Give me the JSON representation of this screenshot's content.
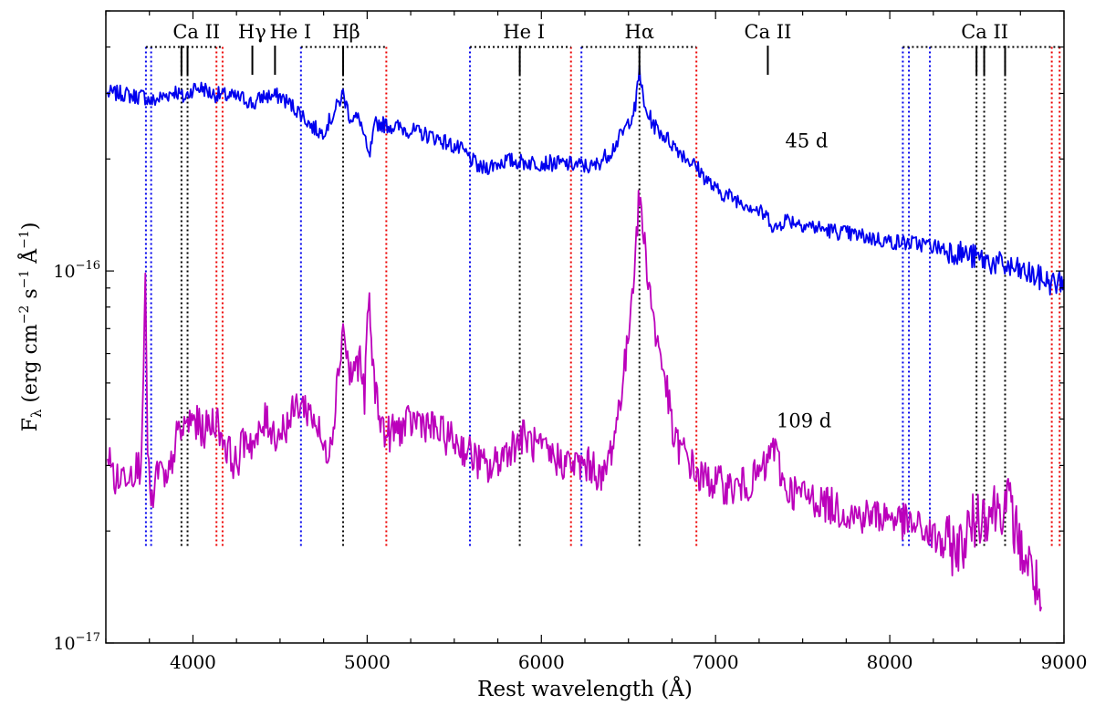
{
  "chart_data": {
    "type": "line",
    "xlabel": "Rest wavelength (Å)",
    "ylabel": "Fλ (erg cm⁻² s⁻¹ Å⁻¹)",
    "ylabel_parts": {
      "base": "F",
      "sub": "λ",
      "rest1": " (erg cm",
      "e1": "−2",
      "rest2": " s",
      "e2": "−1",
      "rest3": " Å",
      "e3": "−1",
      "rest4": ")"
    },
    "xlim": [
      3500,
      9000
    ],
    "ylim": [
      1e-17,
      5e-16
    ],
    "yscale": "log",
    "xticks": [
      4000,
      5000,
      6000,
      7000,
      8000,
      9000
    ],
    "yticks": [
      {
        "value": 1e-17,
        "base": "10",
        "exp": "−17"
      },
      {
        "value": 1e-16,
        "base": "10",
        "exp": "−16"
      }
    ],
    "series": [
      {
        "name": "45 d",
        "color": "#0000ee",
        "points": [
          [
            3510,
            3e-16
          ],
          [
            3600,
            3e-16
          ],
          [
            3650,
            2.95e-16
          ],
          [
            3720,
            2.95e-16
          ],
          [
            3760,
            2.85e-16
          ],
          [
            3800,
            2.9e-16
          ],
          [
            3900,
            3.05e-16
          ],
          [
            3950,
            2.9e-16
          ],
          [
            4000,
            3.1e-16
          ],
          [
            4060,
            3.1e-16
          ],
          [
            4100,
            3e-16
          ],
          [
            4200,
            2.95e-16
          ],
          [
            4300,
            2.9e-16
          ],
          [
            4350,
            2.8e-16
          ],
          [
            4400,
            2.95e-16
          ],
          [
            4500,
            2.95e-16
          ],
          [
            4560,
            2.8e-16
          ],
          [
            4620,
            2.65e-16
          ],
          [
            4680,
            2.45e-16
          ],
          [
            4740,
            2.35e-16
          ],
          [
            4800,
            2.6e-16
          ],
          [
            4862,
            3e-16
          ],
          [
            4900,
            2.6e-16
          ],
          [
            4960,
            2.55e-16
          ],
          [
            5010,
            2e-16
          ],
          [
            5050,
            2.5e-16
          ],
          [
            5200,
            2.42e-16
          ],
          [
            5400,
            2.28e-16
          ],
          [
            5550,
            2.1e-16
          ],
          [
            5650,
            1.88e-16
          ],
          [
            5800,
            1.98e-16
          ],
          [
            5900,
            1.96e-16
          ],
          [
            6050,
            1.95e-16
          ],
          [
            6200,
            1.93e-16
          ],
          [
            6300,
            1.9e-16
          ],
          [
            6400,
            2.1e-16
          ],
          [
            6480,
            2.4e-16
          ],
          [
            6540,
            2.75e-16
          ],
          [
            6563,
            3.5e-16
          ],
          [
            6590,
            2.75e-16
          ],
          [
            6650,
            2.45e-16
          ],
          [
            6750,
            2.2e-16
          ],
          [
            6900,
            1.88e-16
          ],
          [
            7000,
            1.65e-16
          ],
          [
            7200,
            1.5e-16
          ],
          [
            7320,
            1.37e-16
          ],
          [
            7330,
            1.28e-16
          ],
          [
            7400,
            1.38e-16
          ],
          [
            7600,
            1.3e-16
          ],
          [
            7800,
            1.25e-16
          ],
          [
            8000,
            1.2e-16
          ],
          [
            8200,
            1.18e-16
          ],
          [
            8400,
            1.12e-16
          ],
          [
            8600,
            1.05e-16
          ],
          [
            8800,
            9.8e-17
          ],
          [
            8950,
            9.2e-17
          ],
          [
            8999,
            9.5e-17
          ]
        ]
      },
      {
        "name": "109 d",
        "color": "#bb00bb",
        "points": [
          [
            3510,
            3.2e-17
          ],
          [
            3560,
            2.7e-17
          ],
          [
            3620,
            2.9e-17
          ],
          [
            3700,
            3e-17
          ],
          [
            3727,
            8.8e-17
          ],
          [
            3740,
            3.5e-17
          ],
          [
            3760,
            2.2e-17
          ],
          [
            3800,
            3e-17
          ],
          [
            3850,
            2.6e-17
          ],
          [
            3900,
            3.5e-17
          ],
          [
            3950,
            3.8e-17
          ],
          [
            4000,
            4e-17
          ],
          [
            4060,
            3.7e-17
          ],
          [
            4130,
            4e-17
          ],
          [
            4200,
            3.3e-17
          ],
          [
            4250,
            3e-17
          ],
          [
            4300,
            3.6e-17
          ],
          [
            4360,
            3.4e-17
          ],
          [
            4420,
            4e-17
          ],
          [
            4480,
            3.6e-17
          ],
          [
            4560,
            4e-17
          ],
          [
            4600,
            4.4e-17
          ],
          [
            4650,
            4.3e-17
          ],
          [
            4700,
            4e-17
          ],
          [
            4760,
            3.2e-17
          ],
          [
            4800,
            3.7e-17
          ],
          [
            4862,
            7.2e-17
          ],
          [
            4900,
            5.2e-17
          ],
          [
            4959,
            5.8e-17
          ],
          [
            4985,
            4.5e-17
          ],
          [
            5007,
            8.5e-17
          ],
          [
            5040,
            5e-17
          ],
          [
            5100,
            3.6e-17
          ],
          [
            5200,
            3.8e-17
          ],
          [
            5300,
            4e-17
          ],
          [
            5400,
            3.7e-17
          ],
          [
            5500,
            3.5e-17
          ],
          [
            5600,
            3.2e-17
          ],
          [
            5700,
            2.9e-17
          ],
          [
            5800,
            3.3e-17
          ],
          [
            5900,
            3.6e-17
          ],
          [
            5990,
            3.3e-17
          ],
          [
            6100,
            3.1e-17
          ],
          [
            6200,
            3e-17
          ],
          [
            6300,
            3e-17
          ],
          [
            6350,
            2.7e-17
          ],
          [
            6420,
            3.6e-17
          ],
          [
            6490,
            6e-17
          ],
          [
            6540,
            1.15e-16
          ],
          [
            6563,
            1.6e-16
          ],
          [
            6600,
            1.1e-16
          ],
          [
            6650,
            7e-17
          ],
          [
            6710,
            5.2e-17
          ],
          [
            6760,
            3.5e-17
          ],
          [
            6830,
            3.2e-17
          ],
          [
            6900,
            2.8e-17
          ],
          [
            7000,
            2.7e-17
          ],
          [
            7100,
            2.6e-17
          ],
          [
            7200,
            2.7e-17
          ],
          [
            7300,
            3e-17
          ],
          [
            7325,
            3.5e-17
          ],
          [
            7400,
            2.6e-17
          ],
          [
            7600,
            2.4e-17
          ],
          [
            7800,
            2.2e-17
          ],
          [
            8000,
            2.2e-17
          ],
          [
            8200,
            2e-17
          ],
          [
            8300,
            1.85e-17
          ],
          [
            8400,
            1.8e-17
          ],
          [
            8500,
            2.2e-17
          ],
          [
            8600,
            2.3e-17
          ],
          [
            8680,
            2.4e-17
          ],
          [
            8750,
            1.8e-17
          ],
          [
            8830,
            1.5e-17
          ],
          [
            8870,
            1.25e-17
          ]
        ]
      }
    ],
    "annotations": [
      {
        "text": "45 d",
        "x": 7400,
        "y": 2.15e-16
      },
      {
        "text": "109 d",
        "x": 7350,
        "y": 3.8e-17
      }
    ],
    "line_labels": [
      {
        "text": "Ca II",
        "x": 4020
      },
      {
        "text": "Hγ",
        "x": 4340
      },
      {
        "text": "He I",
        "x": 4560
      },
      {
        "text": "Hβ",
        "x": 4880
      },
      {
        "text": "He I",
        "x": 5900
      },
      {
        "text": "Hα",
        "x": 6563
      },
      {
        "text": "Ca II",
        "x": 7300
      },
      {
        "text": "Ca II",
        "x": 8545
      }
    ],
    "line_markers": [
      3934,
      3969,
      4341,
      4471,
      4862,
      5876,
      6563,
      7300,
      8498,
      8542,
      8662
    ],
    "vertical_dotted": {
      "black": [
        3934,
        3969,
        4862,
        5876,
        6563,
        8498,
        8542,
        8662
      ],
      "blue": [
        3730,
        3760,
        4620,
        5590,
        6230,
        8075,
        8110,
        8230
      ],
      "red": [
        4135,
        4170,
        5110,
        6170,
        6890,
        8930,
        8975
      ]
    },
    "brackets": [
      [
        3730,
        4170
      ],
      [
        4620,
        5110
      ],
      [
        5590,
        6170
      ],
      [
        6230,
        6890
      ],
      [
        8075,
        8975
      ]
    ],
    "bracket_flux": 4e-16
  }
}
